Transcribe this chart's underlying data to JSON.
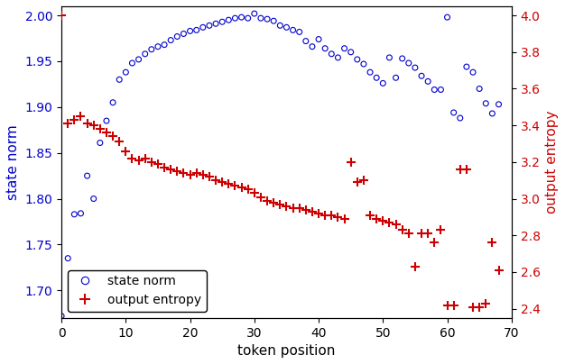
{
  "xlabel": "token position",
  "ylabel_left": "state norm",
  "ylabel_right": "output entropy",
  "blue_x": [
    0,
    1,
    2,
    3,
    4,
    5,
    6,
    7,
    8,
    9,
    10,
    11,
    12,
    13,
    14,
    15,
    16,
    17,
    18,
    19,
    20,
    21,
    22,
    23,
    24,
    25,
    26,
    27,
    28,
    29,
    30,
    31,
    32,
    33,
    34,
    35,
    36,
    37,
    38,
    39,
    40,
    41,
    42,
    43,
    44,
    45,
    46,
    47,
    48,
    49,
    50,
    51,
    52,
    53,
    54,
    55,
    56,
    57,
    58,
    59,
    60,
    61,
    62,
    63,
    64,
    65,
    66,
    67,
    68
  ],
  "blue_y": [
    1.672,
    1.735,
    1.783,
    1.784,
    1.825,
    1.8,
    1.861,
    1.885,
    1.905,
    1.93,
    1.938,
    1.948,
    1.952,
    1.958,
    1.963,
    1.966,
    1.968,
    1.973,
    1.977,
    1.98,
    1.983,
    1.984,
    1.987,
    1.989,
    1.991,
    1.993,
    1.995,
    1.997,
    1.998,
    1.997,
    2.002,
    1.997,
    1.996,
    1.994,
    1.989,
    1.987,
    1.984,
    1.982,
    1.972,
    1.966,
    1.974,
    1.964,
    1.958,
    1.954,
    1.964,
    1.96,
    1.952,
    1.947,
    1.938,
    1.932,
    1.926,
    1.954,
    1.932,
    1.953,
    1.948,
    1.943,
    1.934,
    1.928,
    1.919,
    1.919,
    1.998,
    1.894,
    1.888,
    1.944,
    1.938,
    1.92,
    1.904,
    1.893,
    1.903
  ],
  "red_x": [
    0,
    1,
    2,
    3,
    4,
    5,
    6,
    7,
    8,
    9,
    10,
    11,
    12,
    13,
    14,
    15,
    16,
    17,
    18,
    19,
    20,
    21,
    22,
    23,
    24,
    25,
    26,
    27,
    28,
    29,
    30,
    31,
    32,
    33,
    34,
    35,
    36,
    37,
    38,
    39,
    40,
    41,
    42,
    43,
    44,
    45,
    46,
    47,
    48,
    49,
    50,
    51,
    52,
    53,
    54,
    55,
    56,
    57,
    58,
    59,
    60,
    61,
    62,
    63,
    64,
    65,
    66,
    67,
    68
  ],
  "red_y": [
    4.0,
    3.41,
    3.43,
    3.45,
    3.41,
    3.4,
    3.38,
    3.36,
    3.34,
    3.31,
    3.26,
    3.22,
    3.21,
    3.22,
    3.2,
    3.19,
    3.17,
    3.16,
    3.15,
    3.14,
    3.13,
    3.14,
    3.13,
    3.12,
    3.1,
    3.09,
    3.08,
    3.07,
    3.06,
    3.05,
    3.03,
    3.01,
    2.99,
    2.98,
    2.97,
    2.96,
    2.95,
    2.95,
    2.94,
    2.93,
    2.92,
    2.91,
    2.91,
    2.9,
    2.89,
    3.2,
    3.09,
    3.1,
    2.91,
    2.89,
    2.88,
    2.87,
    2.86,
    2.83,
    2.81,
    2.63,
    2.81,
    2.81,
    2.76,
    2.83,
    2.42,
    2.42,
    3.16,
    3.16,
    2.41,
    2.41,
    2.43,
    2.76,
    2.61
  ],
  "blue_color": "#0000cc",
  "red_color": "#cc0000",
  "xlim": [
    0,
    70
  ],
  "ylim_left": [
    1.67,
    2.01
  ],
  "ylim_right": [
    2.35,
    4.05
  ],
  "yticks_left": [
    1.7,
    1.75,
    1.8,
    1.85,
    1.9,
    1.95,
    2.0
  ],
  "yticks_right": [
    2.4,
    2.6,
    2.8,
    3.0,
    3.2,
    3.4,
    3.6,
    3.8,
    4.0
  ],
  "xticks": [
    0,
    10,
    20,
    30,
    40,
    50,
    60,
    70
  ],
  "legend_loc": "lower left",
  "marker_size_blue": 18,
  "marker_size_red": 45
}
